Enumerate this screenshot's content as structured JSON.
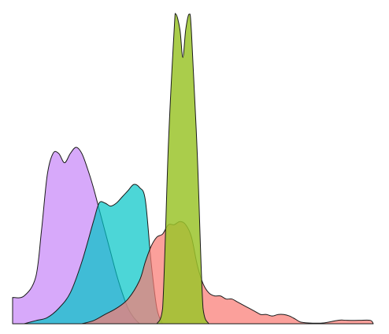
{
  "chart_data": {
    "type": "area",
    "title": "",
    "xlabel": "",
    "ylabel": "",
    "grid": false,
    "legend": "none",
    "ylim": [
      0,
      100
    ],
    "series": [
      {
        "color": "#c17bf7",
        "opacity": 0.65,
        "points": [
          [
            0,
            8.5
          ],
          [
            2,
            9
          ],
          [
            4,
            15
          ],
          [
            5,
            30
          ],
          [
            6,
            48
          ],
          [
            7,
            55
          ],
          [
            8,
            55
          ],
          [
            9,
            52
          ],
          [
            10,
            55
          ],
          [
            11,
            57
          ],
          [
            12,
            55
          ],
          [
            13,
            50
          ],
          [
            14,
            44
          ],
          [
            15,
            37
          ],
          [
            16,
            30
          ],
          [
            17,
            23
          ],
          [
            18,
            16
          ],
          [
            19,
            10
          ],
          [
            20,
            5
          ],
          [
            21,
            2
          ],
          [
            22,
            0
          ]
        ]
      },
      {
        "color": "#00c4c6",
        "opacity": 0.7,
        "points": [
          [
            2,
            0
          ],
          [
            4,
            1
          ],
          [
            6,
            2
          ],
          [
            8,
            5
          ],
          [
            10,
            10
          ],
          [
            12,
            20
          ],
          [
            14,
            33
          ],
          [
            15,
            39
          ],
          [
            16,
            39
          ],
          [
            17,
            38
          ],
          [
            18,
            39
          ],
          [
            19,
            41
          ],
          [
            20,
            43
          ],
          [
            21,
            45
          ],
          [
            22,
            44
          ],
          [
            23,
            40
          ],
          [
            24,
            20
          ],
          [
            25,
            5
          ],
          [
            26,
            0
          ]
        ]
      },
      {
        "color": "#fa7c74",
        "opacity": 0.72,
        "points": [
          [
            12,
            0
          ],
          [
            14,
            1
          ],
          [
            16,
            3
          ],
          [
            18,
            5
          ],
          [
            20,
            8
          ],
          [
            22,
            14
          ],
          [
            23,
            20
          ],
          [
            24,
            25
          ],
          [
            25,
            28
          ],
          [
            26,
            29
          ],
          [
            27,
            32
          ],
          [
            28,
            32
          ],
          [
            29,
            33
          ],
          [
            30,
            32
          ],
          [
            31,
            28
          ],
          [
            32,
            19
          ],
          [
            33,
            13
          ],
          [
            34,
            10
          ],
          [
            35,
            9
          ],
          [
            36,
            9
          ],
          [
            37,
            8
          ],
          [
            38,
            8
          ],
          [
            39,
            7
          ],
          [
            40,
            6
          ],
          [
            41,
            5
          ],
          [
            42,
            4
          ],
          [
            43,
            3
          ],
          [
            44,
            3
          ],
          [
            45,
            2.5
          ],
          [
            46,
            3
          ],
          [
            47,
            3
          ],
          [
            48,
            2.5
          ],
          [
            49,
            1.5
          ],
          [
            50,
            0.5
          ],
          [
            52,
            0.2
          ],
          [
            54,
            0.3
          ],
          [
            56,
            1
          ],
          [
            57,
            1.2
          ],
          [
            58,
            1.1
          ],
          [
            60,
            1.1
          ],
          [
            62,
            1.1
          ],
          [
            62.5,
            0
          ]
        ]
      },
      {
        "color": "#9bc42c",
        "opacity": 0.85,
        "points": [
          [
            25,
            0
          ],
          [
            26,
            5
          ],
          [
            27,
            58
          ],
          [
            28,
            95
          ],
          [
            28.3,
            100
          ],
          [
            29,
            95
          ],
          [
            29.5,
            86
          ],
          [
            30,
            95
          ],
          [
            30.6,
            100
          ],
          [
            31,
            94
          ],
          [
            32,
            55
          ],
          [
            33,
            5
          ],
          [
            34,
            0
          ]
        ]
      }
    ]
  }
}
